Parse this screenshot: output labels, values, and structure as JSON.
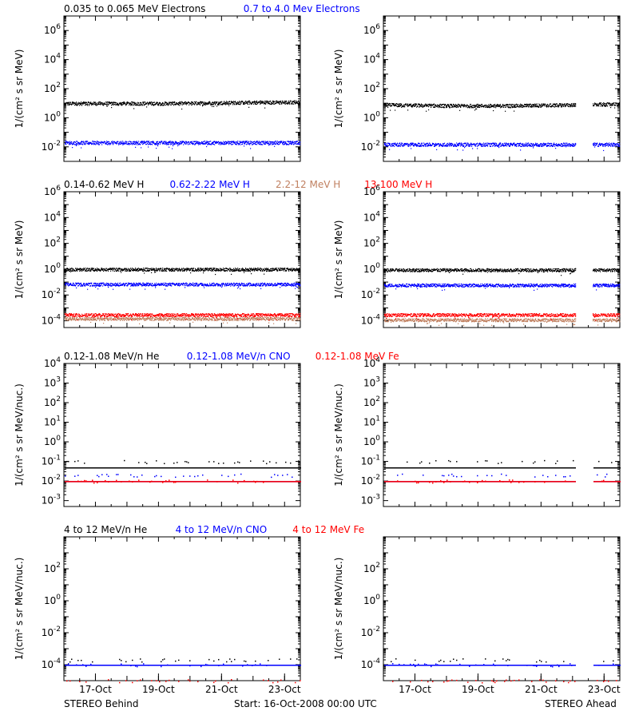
{
  "footer": {
    "left": "STEREO Behind",
    "center": "Start: 16-Oct-2008 00:00 UTC",
    "right": "STEREO Ahead"
  },
  "x_axis": {
    "range": [
      "2008-10-16",
      "2008-10-23T12:00"
    ],
    "tick_labels": [
      "17-Oct",
      "19-Oct",
      "21-Oct",
      "23-Oct"
    ],
    "tick_dates": [
      "2008-10-17",
      "2008-10-19",
      "2008-10-21",
      "2008-10-23"
    ]
  },
  "colors": {
    "black": "#000000",
    "blue": "#0000ff",
    "tan": "#c08060",
    "red": "#ff0000"
  },
  "rows": [
    {
      "legend": [
        {
          "text": "0.035 to 0.065 MeV Electrons",
          "color": "#000000"
        },
        {
          "text": "0.7 to 4.0 Mev Electrons",
          "color": "#0000ff"
        }
      ],
      "ylabel": "1/(cm² s sr MeV)"
    },
    {
      "legend": [
        {
          "text": "0.14-0.62 MeV H",
          "color": "#000000"
        },
        {
          "text": "0.62-2.22 MeV H",
          "color": "#0000ff"
        },
        {
          "text": "2.2-12 MeV H",
          "color": "#c08060"
        },
        {
          "text": "13-100 MeV H",
          "color": "#ff0000"
        }
      ],
      "ylabel": "1/(cm² s sr MeV)"
    },
    {
      "legend": [
        {
          "text": "0.12-1.08 MeV/n He",
          "color": "#000000"
        },
        {
          "text": "0.12-1.08 MeV/n CNO",
          "color": "#0000ff"
        },
        {
          "text": "0.12-1.08 MeV Fe",
          "color": "#ff0000"
        }
      ],
      "ylabel": "1/(cm² s sr MeV/nuc.)"
    },
    {
      "legend": [
        {
          "text": "4 to 12 MeV/n He",
          "color": "#000000"
        },
        {
          "text": "4 to 12 MeV/n CNO",
          "color": "#0000ff"
        },
        {
          "text": "4 to 12 MeV Fe",
          "color": "#ff0000"
        }
      ],
      "ylabel": "1/(cm² s sr MeV/nuc.)"
    }
  ],
  "chart_data": [
    {
      "type": "scatter",
      "panel": "STEREO Behind",
      "row": 1,
      "ylog": true,
      "ylim": [
        0.001,
        10000000
      ],
      "y_tick_labels": [
        "10^-2",
        "10^0",
        "10^2",
        "10^4",
        "10^6"
      ],
      "series": [
        {
          "name": "0.035 to 0.065 MeV Electrons",
          "color": "#000000",
          "x": [
            "2008-10-16",
            "2008-10-17",
            "2008-10-18",
            "2008-10-19",
            "2008-10-20",
            "2008-10-21",
            "2008-10-22",
            "2008-10-23",
            "2008-10-23T12:00"
          ],
          "y": [
            10,
            10,
            10,
            10,
            10.5,
            11,
            12,
            12,
            13
          ],
          "gaps": []
        },
        {
          "name": "0.7 to 4.0 Mev Electrons",
          "color": "#0000ff",
          "x": [
            "2008-10-16",
            "2008-10-23T12:00"
          ],
          "y": [
            0.02,
            0.02
          ],
          "gaps": []
        }
      ]
    },
    {
      "type": "scatter",
      "panel": "STEREO Ahead",
      "row": 1,
      "ylog": true,
      "ylim": [
        0.001,
        10000000
      ],
      "y_tick_labels": [
        "10^-2",
        "10^0",
        "10^2",
        "10^4",
        "10^6"
      ],
      "series": [
        {
          "name": "0.035 to 0.065 MeV Electrons",
          "color": "#000000",
          "x": [
            "2008-10-16",
            "2008-10-18",
            "2008-10-20",
            "2008-10-22",
            "2008-10-23T12:00"
          ],
          "y": [
            8,
            7,
            7,
            8,
            9
          ],
          "gaps": [
            [
              "2008-10-22T02:00",
              "2008-10-22T15:00"
            ]
          ]
        },
        {
          "name": "0.7 to 4.0 Mev Electrons",
          "color": "#0000ff",
          "x": [
            "2008-10-16",
            "2008-10-23T12:00"
          ],
          "y": [
            0.015,
            0.015
          ],
          "gaps": [
            [
              "2008-10-22T02:00",
              "2008-10-22T15:00"
            ]
          ]
        }
      ]
    },
    {
      "type": "scatter",
      "panel": "STEREO Behind",
      "row": 2,
      "ylog": true,
      "ylim": [
        3e-05,
        1000000
      ],
      "y_tick_labels": [
        "10^-4",
        "10^-2",
        "10^0",
        "10^2",
        "10^4",
        "10^6"
      ],
      "series": [
        {
          "name": "0.14-0.62 MeV H",
          "color": "#000000",
          "x": [
            "2008-10-16",
            "2008-10-23T12:00"
          ],
          "y": [
            1.0,
            1.0
          ],
          "gaps": []
        },
        {
          "name": "0.62-2.22 MeV H",
          "color": "#0000ff",
          "x": [
            "2008-10-16",
            "2008-10-23T12:00"
          ],
          "y": [
            0.07,
            0.07
          ],
          "gaps": []
        },
        {
          "name": "2.2-12 MeV H",
          "color": "#c08060",
          "x": [
            "2008-10-16",
            "2008-10-23T12:00"
          ],
          "y": [
            0.00015,
            0.00015
          ],
          "gaps": []
        },
        {
          "name": "13-100 MeV H",
          "color": "#ff0000",
          "x": [
            "2008-10-16",
            "2008-10-23T12:00"
          ],
          "y": [
            0.0003,
            0.0003
          ],
          "gaps": []
        }
      ]
    },
    {
      "type": "scatter",
      "panel": "STEREO Ahead",
      "row": 2,
      "ylog": true,
      "ylim": [
        3e-05,
        1000000
      ],
      "y_tick_labels": [
        "10^-4",
        "10^-2",
        "10^0",
        "10^2",
        "10^4",
        "10^6"
      ],
      "series": [
        {
          "name": "0.14-0.62 MeV H",
          "color": "#000000",
          "x": [
            "2008-10-16",
            "2008-10-23T12:00"
          ],
          "y": [
            0.9,
            0.9
          ],
          "gaps": [
            [
              "2008-10-22T02:00",
              "2008-10-22T15:00"
            ]
          ]
        },
        {
          "name": "0.62-2.22 MeV H",
          "color": "#0000ff",
          "x": [
            "2008-10-16",
            "2008-10-23T12:00"
          ],
          "y": [
            0.06,
            0.06
          ],
          "gaps": [
            [
              "2008-10-22T02:00",
              "2008-10-22T15:00"
            ]
          ]
        },
        {
          "name": "2.2-12 MeV H",
          "color": "#c08060",
          "x": [
            "2008-10-16",
            "2008-10-23T12:00"
          ],
          "y": [
            0.00012,
            0.00012
          ],
          "gaps": [
            [
              "2008-10-22T02:00",
              "2008-10-22T15:00"
            ]
          ]
        },
        {
          "name": "13-100 MeV H",
          "color": "#ff0000",
          "x": [
            "2008-10-16",
            "2008-10-23T12:00"
          ],
          "y": [
            0.0003,
            0.0003
          ],
          "gaps": [
            [
              "2008-10-22T02:00",
              "2008-10-22T15:00"
            ]
          ]
        }
      ]
    },
    {
      "type": "scatter",
      "panel": "STEREO Behind",
      "row": 3,
      "ylog": true,
      "ylim": [
        0.0005,
        10000
      ],
      "y_tick_labels": [
        "10^-3",
        "10^-2",
        "10^-1",
        "10^0",
        "10^1",
        "10^2",
        "10^3",
        "10^4"
      ],
      "series": [
        {
          "name": "0.12-1.08 MeV/n He",
          "color": "#000000",
          "x": [
            "2008-10-16",
            "2008-10-23T12:00"
          ],
          "y": [
            0.1,
            0.1
          ],
          "baseline": 0.05,
          "gaps": []
        },
        {
          "name": "0.12-1.08 MeV/n CNO",
          "color": "#0000ff",
          "x": [
            "2008-10-16",
            "2008-10-23T12:00"
          ],
          "y": [
            0.02,
            0.02
          ],
          "baseline": 0.01,
          "gaps": []
        },
        {
          "name": "0.12-1.08 MeV Fe",
          "color": "#ff0000",
          "x": [
            "2008-10-16",
            "2008-10-23T12:00"
          ],
          "y": [
            0.01,
            0.01
          ],
          "baseline": 0.01,
          "gaps": []
        }
      ]
    },
    {
      "type": "scatter",
      "panel": "STEREO Ahead",
      "row": 3,
      "ylog": true,
      "ylim": [
        0.0005,
        10000
      ],
      "y_tick_labels": [
        "10^-3",
        "10^-2",
        "10^-1",
        "10^0",
        "10^1",
        "10^2",
        "10^3",
        "10^4"
      ],
      "series": [
        {
          "name": "0.12-1.08 MeV/n He",
          "color": "#000000",
          "x": [
            "2008-10-16",
            "2008-10-23T12:00"
          ],
          "y": [
            0.1,
            0.1
          ],
          "baseline": 0.05,
          "gaps": [
            [
              "2008-10-22T02:00",
              "2008-10-22T15:00"
            ]
          ]
        },
        {
          "name": "0.12-1.08 MeV/n CNO",
          "color": "#0000ff",
          "x": [
            "2008-10-16",
            "2008-10-23T12:00"
          ],
          "y": [
            0.02,
            0.02
          ],
          "baseline": 0.01,
          "gaps": [
            [
              "2008-10-22T02:00",
              "2008-10-22T15:00"
            ]
          ]
        },
        {
          "name": "0.12-1.08 MeV Fe",
          "color": "#ff0000",
          "x": [
            "2008-10-16",
            "2008-10-23T12:00"
          ],
          "y": [
            0.01,
            0.01
          ],
          "baseline": 0.01,
          "gaps": [
            [
              "2008-10-22T02:00",
              "2008-10-22T15:00"
            ]
          ]
        }
      ]
    },
    {
      "type": "scatter",
      "panel": "STEREO Behind",
      "row": 4,
      "ylog": true,
      "ylim": [
        1e-05,
        10000
      ],
      "y_tick_labels": [
        "10^-4",
        "10^-2",
        "10^0",
        "10^2"
      ],
      "series": [
        {
          "name": "4 to 12 MeV/n He",
          "color": "#000000",
          "x": [
            "2008-10-16",
            "2008-10-23T12:00"
          ],
          "y": [
            0.0002,
            0.0002
          ],
          "gaps": []
        },
        {
          "name": "4 to 12 MeV/n CNO",
          "color": "#0000ff",
          "x": [
            "2008-10-16",
            "2008-10-23T12:00"
          ],
          "y": [
            0.0001,
            0.0001
          ],
          "baseline": 0.0001,
          "gaps": []
        },
        {
          "name": "4 to 12 MeV Fe",
          "color": "#ff0000",
          "x": [
            "2008-10-16",
            "2008-10-23T12:00"
          ],
          "y": [
            1e-05,
            1e-05
          ],
          "gaps": []
        }
      ]
    },
    {
      "type": "scatter",
      "panel": "STEREO Ahead",
      "row": 4,
      "ylog": true,
      "ylim": [
        1e-05,
        10000
      ],
      "y_tick_labels": [
        "10^-4",
        "10^-2",
        "10^0",
        "10^2"
      ],
      "series": [
        {
          "name": "4 to 12 MeV/n He",
          "color": "#000000",
          "x": [
            "2008-10-16",
            "2008-10-23T12:00"
          ],
          "y": [
            0.0002,
            0.0002
          ],
          "gaps": [
            [
              "2008-10-22T02:00",
              "2008-10-22T15:00"
            ]
          ]
        },
        {
          "name": "4 to 12 MeV/n CNO",
          "color": "#0000ff",
          "x": [
            "2008-10-16",
            "2008-10-23T12:00"
          ],
          "y": [
            0.0001,
            0.0001
          ],
          "baseline": 0.0001,
          "gaps": [
            [
              "2008-10-22T02:00",
              "2008-10-22T15:00"
            ]
          ]
        },
        {
          "name": "4 to 12 MeV Fe",
          "color": "#ff0000",
          "x": [
            "2008-10-16",
            "2008-10-23T12:00"
          ],
          "y": [
            1e-05,
            1e-05
          ],
          "gaps": [
            [
              "2008-10-22T02:00",
              "2008-10-22T15:00"
            ]
          ]
        }
      ]
    }
  ]
}
